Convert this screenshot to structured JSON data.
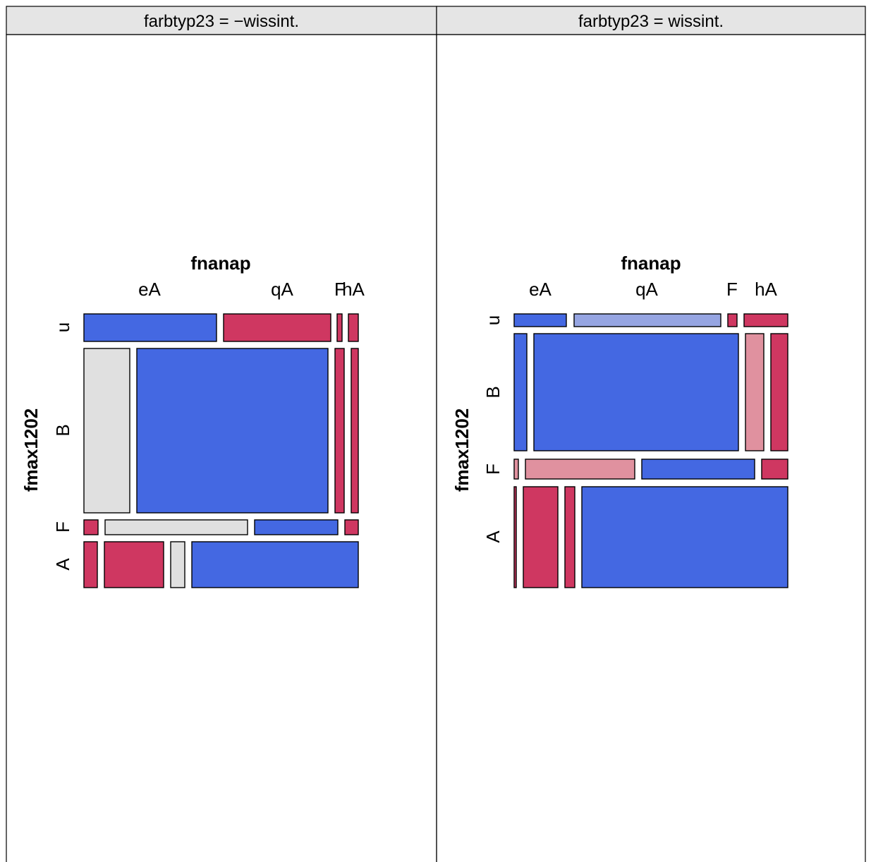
{
  "chart_data": [
    {
      "type": "mosaic",
      "strip": "farbtyp23 = −wissint.",
      "xlabel": "fnanap",
      "ylabel": "fmax1202",
      "x_levels": [
        "eA",
        "qA",
        "F",
        "hA"
      ],
      "y_levels": [
        "u",
        "B",
        "F",
        "A"
      ],
      "row_props": [
        0.12,
        0.71,
        0.063,
        0.19
      ],
      "col_props": [
        [
          0.49,
          0.41,
          0.02,
          0.037
        ],
        [
          0.16,
          0.72,
          0.022,
          0.012
        ],
        [
          0.03,
          0.55,
          0.31,
          0.04
        ],
        [
          0.04,
          0.24,
          0.05,
          0.62
        ]
      ],
      "fills": [
        [
          "#4468E2",
          "#CF3761",
          "#CF3761",
          "#CF3761"
        ],
        [
          "#E0E0E0",
          "#4468E2",
          "#CF3761",
          "#CF3761"
        ],
        [
          "#CF3761",
          "#E0E0E0",
          "#4468E2",
          "#CF3761"
        ],
        [
          "#CF3761",
          "#CF3761",
          "#E0E0E0",
          "#4468E2"
        ]
      ]
    },
    {
      "type": "mosaic",
      "strip": "farbtyp23 = wissint.",
      "xlabel": "fnanap",
      "ylabel": "fmax1202",
      "x_levels": [
        "eA",
        "qA",
        "F",
        "hA"
      ],
      "y_levels": [
        "u",
        "B",
        "F",
        "A"
      ],
      "row_props": [
        0.055,
        0.49,
        0.08,
        0.38
      ],
      "col_props": [
        [
          0.19,
          0.54,
          0.03,
          0.16
        ],
        [
          0.045,
          0.78,
          0.065,
          0.06
        ],
        [
          0.01,
          0.41,
          0.42,
          0.1
        ],
        [
          0.01,
          0.13,
          0.032,
          0.8
        ]
      ],
      "fills": [
        [
          "#4468E2",
          "#96A5E2",
          "#CF3761",
          "#CF3761"
        ],
        [
          "#4468E2",
          "#4468E2",
          "#E0919F",
          "#CF3761"
        ],
        [
          "#E0919F",
          "#E0919F",
          "#4468E2",
          "#CF3761"
        ],
        [
          "#CF3761",
          "#CF3761",
          "#CF3761",
          "#4468E2"
        ]
      ]
    }
  ]
}
